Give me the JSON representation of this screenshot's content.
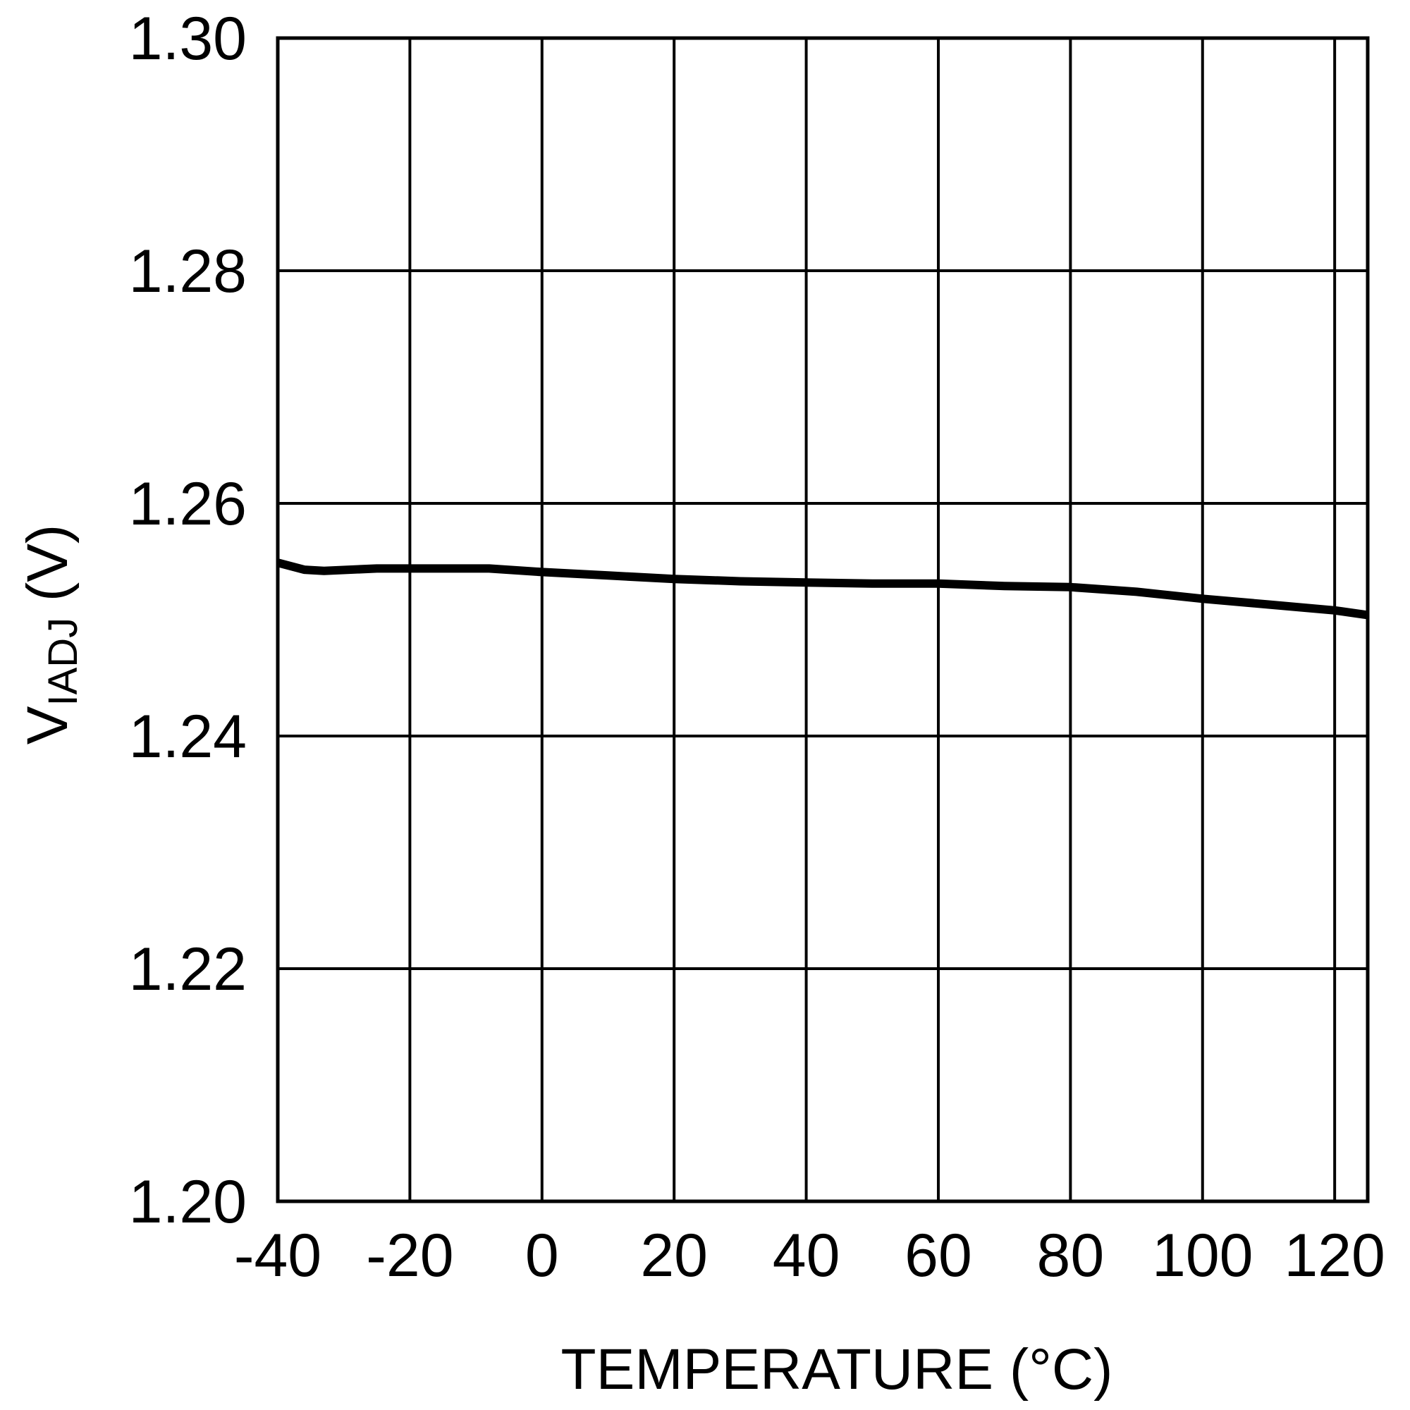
{
  "chart_data": {
    "type": "line",
    "title": "",
    "xlabel": "TEMPERATURE (°C)",
    "ylabel": {
      "main": "V",
      "subscript": "IADJ",
      "unit": " (V)"
    },
    "xlim": [
      -40,
      125
    ],
    "ylim": [
      1.2,
      1.3
    ],
    "x_ticks": [
      -40,
      -20,
      0,
      20,
      40,
      60,
      80,
      100,
      120
    ],
    "x_tick_labels": [
      "-40",
      "-20",
      "0",
      "20",
      "40",
      "60",
      "80",
      "100",
      "120"
    ],
    "y_ticks": [
      1.2,
      1.22,
      1.24,
      1.26,
      1.28,
      1.3
    ],
    "y_tick_labels": [
      "1.20",
      "1.22",
      "1.24",
      "1.26",
      "1.28",
      "1.30"
    ],
    "grid": true,
    "series": [
      {
        "color": "#000000",
        "x": [
          -40,
          -36,
          -33,
          -25,
          -20,
          -8,
          0,
          10,
          20,
          30,
          40,
          50,
          60,
          70,
          80,
          90,
          100,
          110,
          120,
          125
        ],
        "y": [
          1.2549,
          1.2543,
          1.2542,
          1.2544,
          1.2544,
          1.2544,
          1.2541,
          1.2538,
          1.2535,
          1.2533,
          1.2532,
          1.2531,
          1.2531,
          1.2529,
          1.2528,
          1.2524,
          1.2518,
          1.2513,
          1.2508,
          1.2504
        ]
      }
    ]
  }
}
